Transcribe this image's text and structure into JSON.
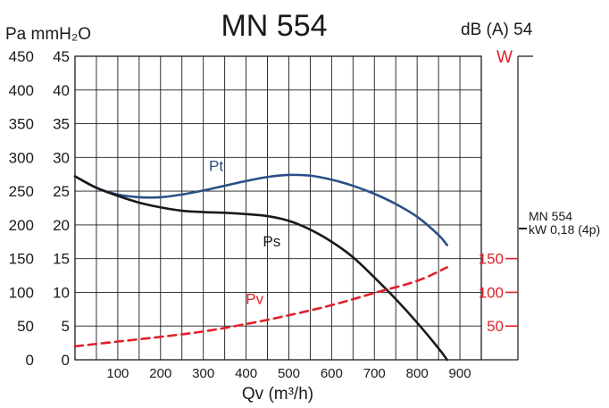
{
  "chart_data": {
    "type": "line",
    "title": "MN 554",
    "noise_label": "dB (A) 54",
    "y_unit_left": "Pa mmH₂O",
    "y_unit_right": "W",
    "xlabel": "Qv (m³/h)",
    "xlim": [
      0,
      950
    ],
    "ylim_pa": [
      0,
      450
    ],
    "ylim_mm": [
      0,
      45
    ],
    "x_ticks": [
      "100",
      "200",
      "300",
      "400",
      "500",
      "600",
      "700",
      "800",
      "900"
    ],
    "y_ticks_pa": [
      "0",
      "50",
      "100",
      "150",
      "200",
      "250",
      "300",
      "350",
      "400",
      "450"
    ],
    "y_ticks_mm": [
      "0",
      "5",
      "10",
      "15",
      "20",
      "25",
      "30",
      "35",
      "40",
      "45"
    ],
    "y_ticks_w": [
      "50",
      "100",
      "150"
    ],
    "motor_label_1": "MN 554",
    "motor_label_2": "kW 0,18 (4p)",
    "series": [
      {
        "name": "Pt",
        "color": "#2a4f86",
        "style": "solid",
        "x": [
          0,
          50,
          100,
          150,
          200,
          250,
          300,
          350,
          400,
          450,
          500,
          550,
          600,
          650,
          700,
          750,
          800,
          850,
          870
        ],
        "y": [
          272,
          255,
          245,
          241,
          241,
          245,
          251,
          258,
          265,
          271,
          274,
          273,
          267,
          258,
          246,
          231,
          212,
          185,
          170
        ]
      },
      {
        "name": "Ps",
        "color": "#1a1a1a",
        "style": "solid",
        "x": [
          0,
          50,
          100,
          150,
          200,
          250,
          300,
          350,
          400,
          450,
          500,
          550,
          600,
          650,
          700,
          750,
          800,
          850,
          870
        ],
        "y": [
          272,
          255,
          243,
          233,
          226,
          221,
          219,
          218,
          216,
          213,
          206,
          193,
          175,
          152,
          122,
          90,
          55,
          17,
          0
        ]
      },
      {
        "name": "Pv",
        "color": "#e0202a",
        "style": "dashed",
        "x": [
          0,
          100,
          200,
          300,
          400,
          500,
          600,
          700,
          800,
          870
        ],
        "y": [
          20,
          27,
          34,
          42,
          53,
          66,
          81,
          99,
          117,
          137
        ]
      }
    ]
  }
}
